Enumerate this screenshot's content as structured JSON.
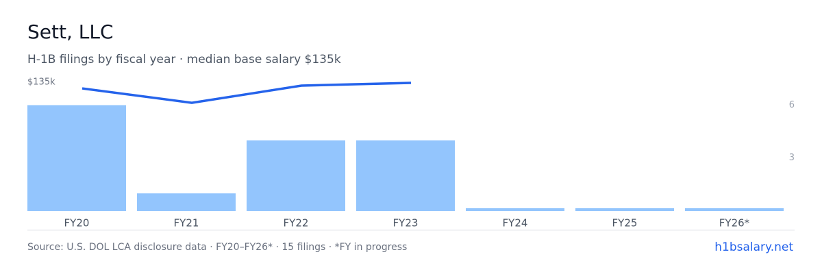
{
  "chart_data": {
    "type": "bar",
    "title": "Sett, LLC",
    "subtitle": "H-1B filings by fiscal year · median base salary $135k",
    "categories": [
      "FY20",
      "FY21",
      "FY22",
      "FY23",
      "FY24",
      "FY25",
      "FY26*"
    ],
    "series": [
      {
        "name": "H-1B filings",
        "color": "#93c5fd",
        "values": [
          6,
          1,
          4,
          4,
          0,
          0,
          0
        ]
      },
      {
        "name": "Median base salary",
        "color": "#2563eb",
        "type": "line",
        "axis": "y2",
        "values": [
          128500,
          113400,
          131400,
          134300,
          null,
          null,
          null
        ]
      }
    ],
    "ylim": [
      0,
      7.3
    ],
    "yticks": [
      3,
      6
    ],
    "y2lim": [
      0,
      135000
    ],
    "y2ticks": [
      {
        "value": 135000,
        "label": "$135k"
      }
    ],
    "source": "Source: U.S. DOL LCA disclosure data · FY20–FY26* · 15 filings · *FY in progress",
    "brand": "h1bsalary.net"
  }
}
